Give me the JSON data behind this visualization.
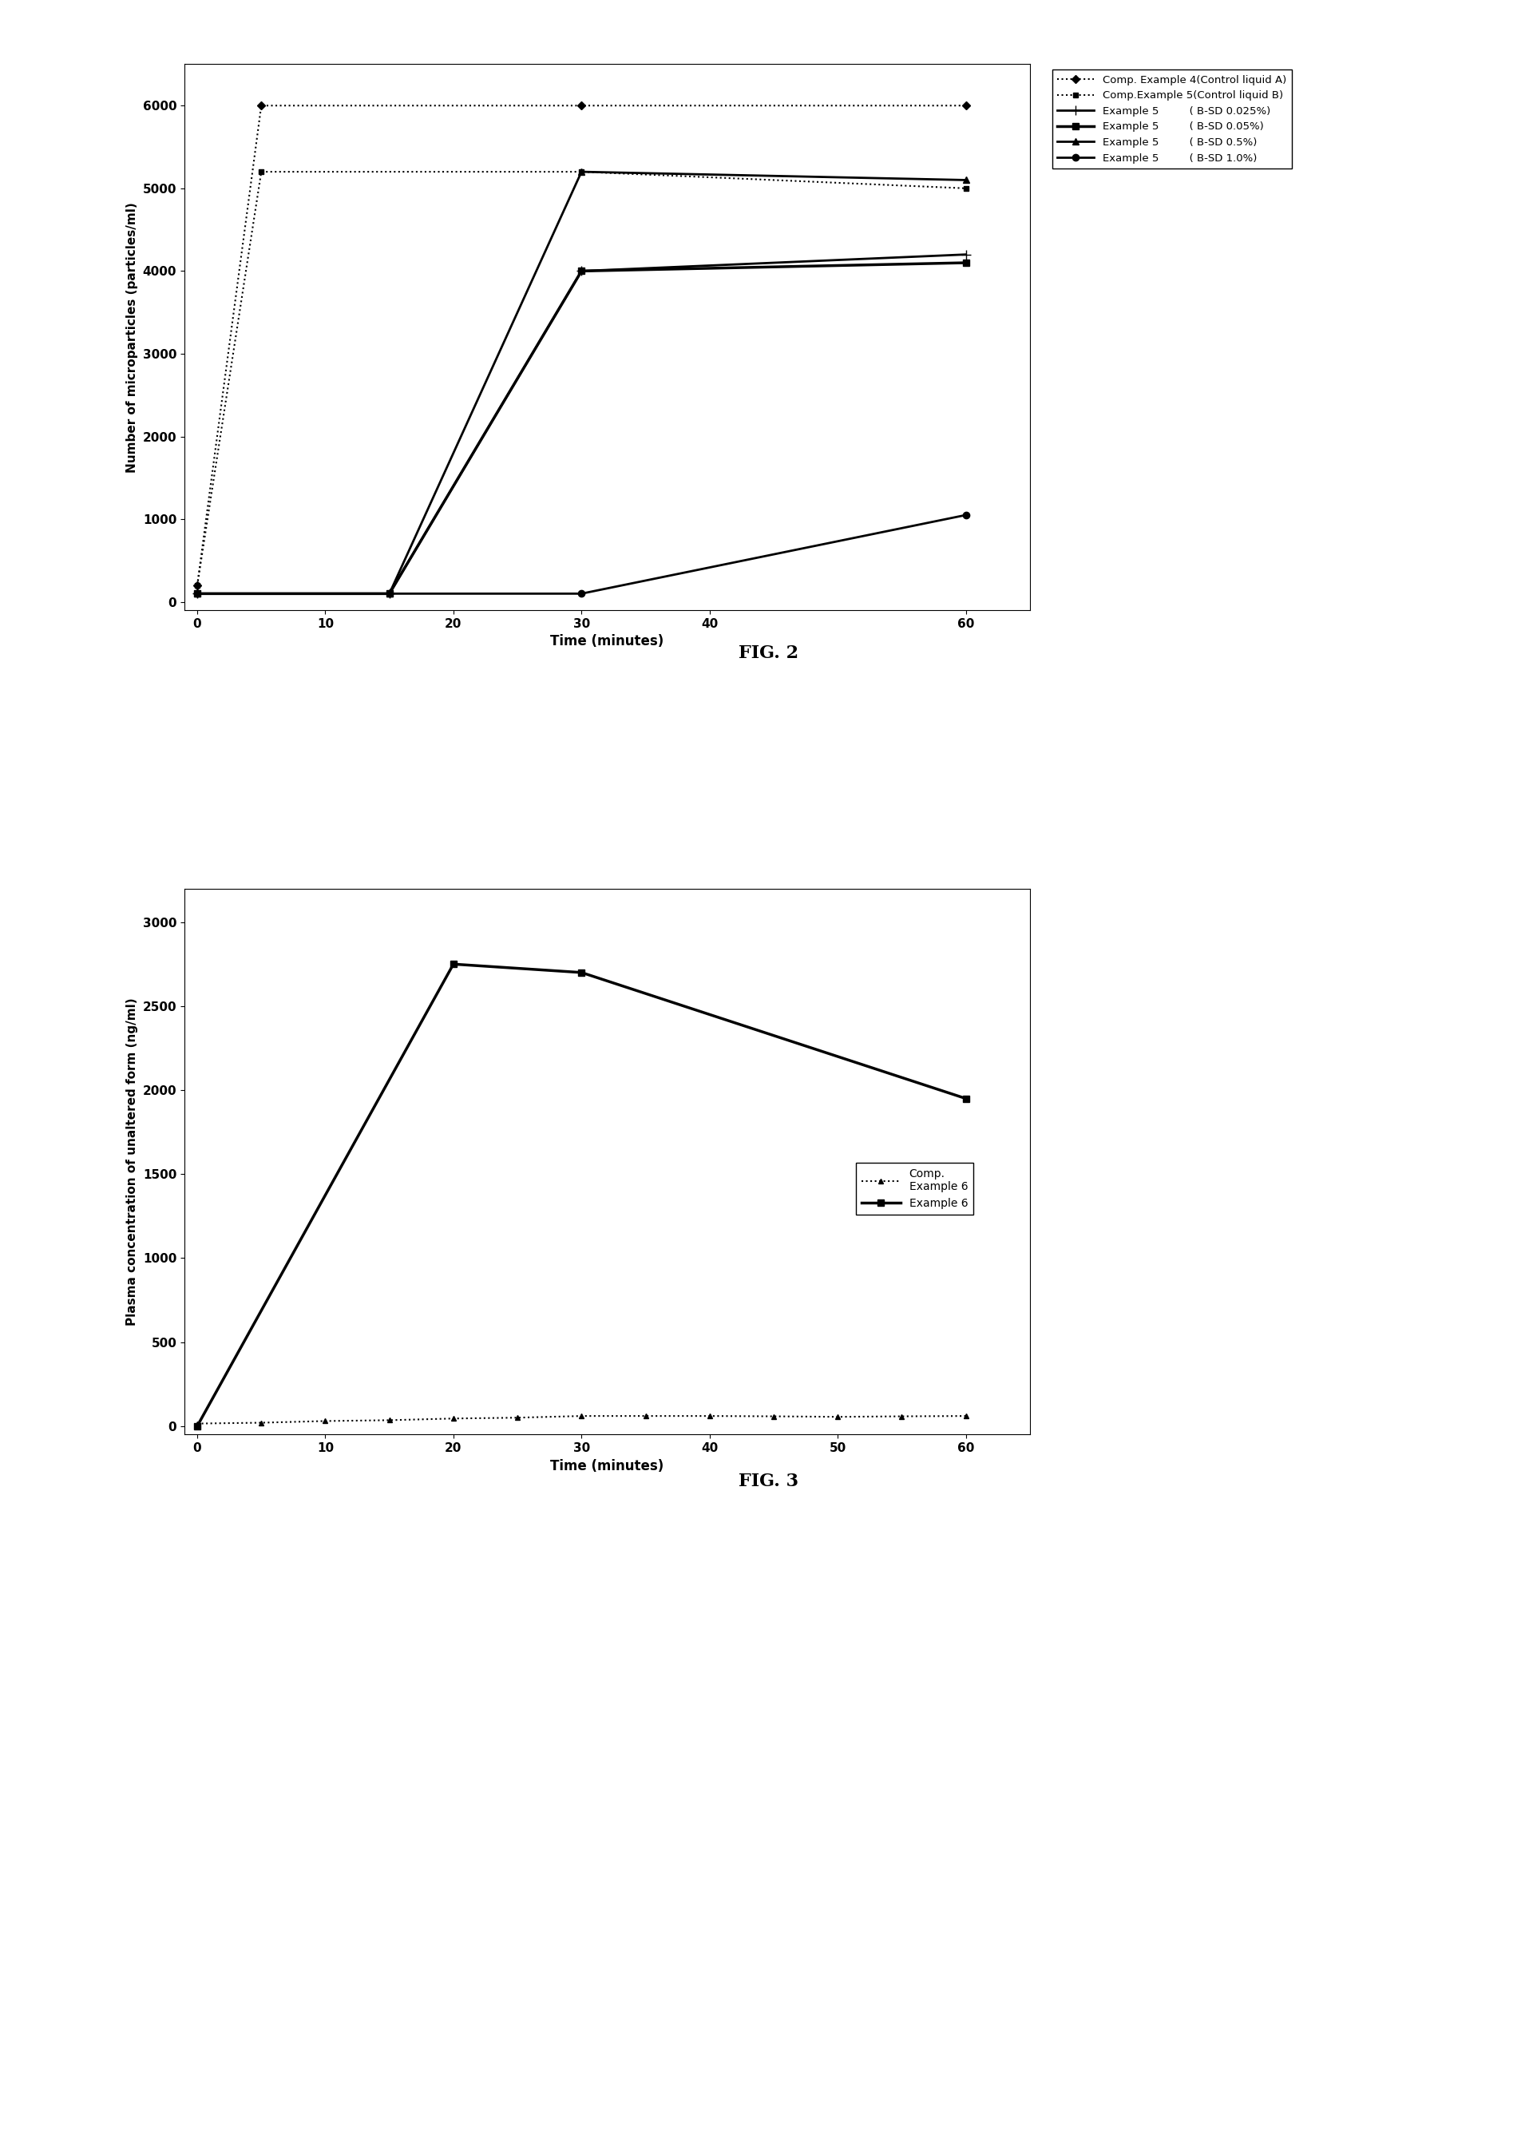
{
  "fig2": {
    "title": "FIG. 2",
    "xlabel": "Time (minutes)",
    "ylabel": "Number of microparticles (particles/ml)",
    "xlim": [
      -1,
      65
    ],
    "ylim": [
      -100,
      6500
    ],
    "yticks": [
      0,
      1000,
      2000,
      3000,
      4000,
      5000,
      6000
    ],
    "xticks": [
      0,
      10,
      20,
      30,
      40,
      60
    ],
    "xtick_labels": [
      "0",
      "10",
      "20",
      "30",
      "40",
      "60"
    ],
    "series": [
      {
        "label": "Comp. Example 4(Control liquid A)",
        "x": [
          0,
          5,
          30,
          60
        ],
        "y": [
          200,
          6000,
          6000,
          6000
        ],
        "linestyle": "dotted",
        "marker": "D",
        "markersize": 5,
        "linewidth": 1.5,
        "markevery": 1
      },
      {
        "label": "Comp.Example 5(Control liquid B)",
        "x": [
          0,
          5,
          30,
          60
        ],
        "y": [
          200,
          5200,
          5200,
          5000
        ],
        "linestyle": "dotted",
        "marker": "s",
        "markersize": 5,
        "linewidth": 1.5,
        "markevery": 1
      },
      {
        "label": "Example 5         ( B-SD 0.025%)",
        "x": [
          0,
          15,
          30,
          60
        ],
        "y": [
          100,
          100,
          4000,
          4200
        ],
        "linestyle": "solid",
        "marker": "^",
        "markersize": 6,
        "linewidth": 2.0
      },
      {
        "label": "Example 5         ( B-SD 0.05%)",
        "x": [
          0,
          15,
          30,
          60
        ],
        "y": [
          100,
          100,
          4000,
          4100
        ],
        "linestyle": "solid",
        "marker": "s",
        "markersize": 6,
        "linewidth": 2.5
      },
      {
        "label": "Example 5         ( B-SD 0.5%)",
        "x": [
          0,
          15,
          30,
          60
        ],
        "y": [
          100,
          100,
          5200,
          5100
        ],
        "linestyle": "solid",
        "marker": "^",
        "markersize": 6,
        "linewidth": 2.0
      },
      {
        "label": "Example 5         ( B-SD 1.0%)",
        "x": [
          0,
          15,
          30,
          60
        ],
        "y": [
          100,
          100,
          100,
          1050
        ],
        "linestyle": "solid",
        "marker": "o",
        "markersize": 6,
        "linewidth": 2.0
      }
    ]
  },
  "fig3": {
    "title": "FIG. 3",
    "xlabel": "Time (minutes)",
    "ylabel": "Plasma concentration of unaltered form (ng/ml)",
    "xlim": [
      -1,
      65
    ],
    "ylim": [
      -50,
      3200
    ],
    "yticks": [
      0,
      500,
      1000,
      1500,
      2000,
      2500,
      3000
    ],
    "xtick_labels": [
      "0",
      "10",
      "20",
      "30",
      "40",
      "50",
      "60"
    ],
    "xticks": [
      0,
      10,
      20,
      30,
      40,
      50,
      60
    ],
    "series": [
      {
        "label": "Comp.\nExample 6",
        "x": [
          0,
          5,
          10,
          15,
          20,
          25,
          30,
          35,
          40,
          45,
          50,
          55,
          60
        ],
        "y": [
          15,
          20,
          30,
          35,
          45,
          50,
          60,
          60,
          60,
          58,
          55,
          58,
          60
        ],
        "linestyle": "dotted",
        "marker": "^",
        "markersize": 4,
        "linewidth": 1.5
      },
      {
        "label": "Example 6",
        "x": [
          0,
          20,
          30,
          60
        ],
        "y": [
          0,
          2750,
          2700,
          1950
        ],
        "linestyle": "solid",
        "marker": "s",
        "markersize": 6,
        "linewidth": 2.5
      }
    ]
  }
}
